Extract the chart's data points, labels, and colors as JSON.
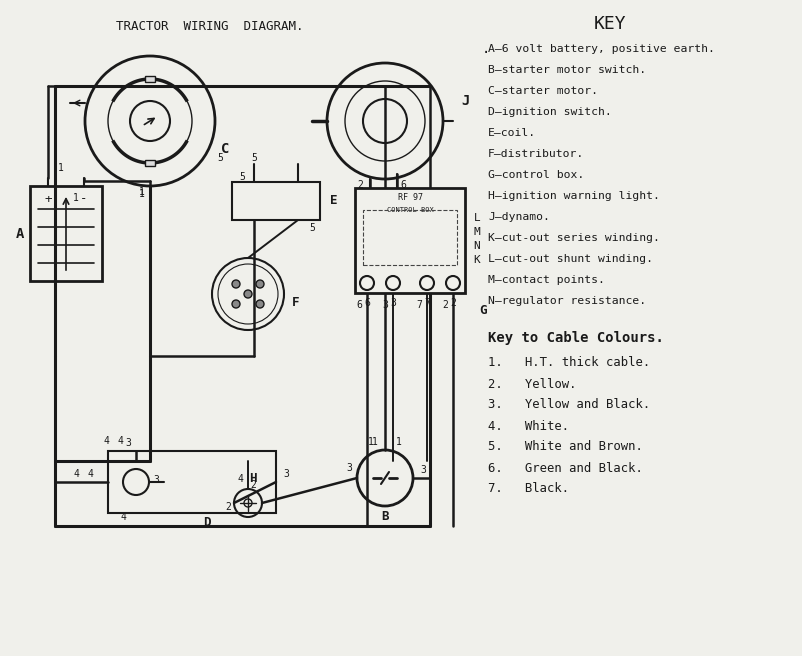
{
  "title": "TRACTOR  WIRING  DIAGRAM.",
  "bg_color": "#f0f0eb",
  "key_title": "KEY",
  "key_items": [
    "A—6 volt battery, positive earth.",
    "B—starter motor switch.",
    "C—starter motor.",
    "D—ignition switch.",
    "E—coil.",
    "F—distributor.",
    "G—control box.",
    "H—ignition warning light.",
    "J—dynamo.",
    "K—cut-out series winding.",
    "L—cut-out shunt winding.",
    "M—contact points.",
    "N—regulator resistance."
  ],
  "cable_title": "Key to Cable Colours.",
  "cable_items": [
    "1.   H.T. thick cable.",
    "2.   Yellow.",
    "3.   Yellow and Black.",
    "4.   White.",
    "5.   White and Brown.",
    "6.   Green and Black.",
    "7.   Black."
  ],
  "line_color": "#1a1a1a",
  "text_color": "#1a1a1a"
}
